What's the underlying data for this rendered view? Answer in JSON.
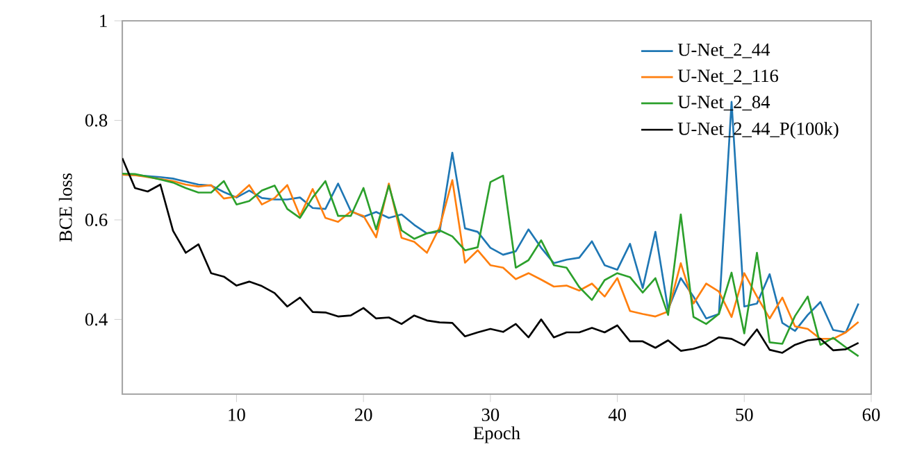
{
  "chart_data": {
    "type": "line",
    "xlabel": "Epoch",
    "ylabel": "BCE loss",
    "x": [
      1,
      2,
      3,
      4,
      5,
      6,
      7,
      8,
      9,
      10,
      11,
      12,
      13,
      14,
      15,
      16,
      17,
      18,
      19,
      20,
      21,
      22,
      23,
      24,
      25,
      26,
      27,
      28,
      29,
      30,
      31,
      32,
      33,
      34,
      35,
      36,
      37,
      38,
      39,
      40,
      41,
      42,
      43,
      44,
      45,
      46,
      47,
      48,
      49,
      50,
      51,
      52,
      53,
      54,
      55,
      56,
      57,
      58,
      59
    ],
    "xlim": [
      1,
      60
    ],
    "ylim": [
      0.25,
      1
    ],
    "xticks": [
      10,
      20,
      30,
      40,
      50,
      60
    ],
    "yticks": [
      0.4,
      0.6,
      0.8,
      1
    ],
    "legend": "top right",
    "grid": false,
    "marker": "none",
    "line_style": "solid",
    "series": [
      {
        "name": "U-Net_2_44",
        "color": "#1f77b4",
        "values": [
          0.691,
          0.69,
          0.688,
          0.686,
          0.683,
          0.677,
          0.671,
          0.669,
          0.656,
          0.645,
          0.659,
          0.644,
          0.641,
          0.641,
          0.645,
          0.624,
          0.622,
          0.673,
          0.618,
          0.606,
          0.616,
          0.604,
          0.611,
          0.59,
          0.573,
          0.576,
          0.735,
          0.583,
          0.576,
          0.544,
          0.53,
          0.537,
          0.581,
          0.544,
          0.513,
          0.52,
          0.524,
          0.557,
          0.509,
          0.5,
          0.552,
          0.463,
          0.576,
          0.42,
          0.483,
          0.446,
          0.402,
          0.411,
          0.837,
          0.426,
          0.432,
          0.491,
          0.393,
          0.377,
          0.409,
          0.435,
          0.379,
          0.374,
          0.432
        ]
      },
      {
        "name": "U-Net_2_116",
        "color": "#ff7f0e",
        "values": [
          0.691,
          0.69,
          0.686,
          0.682,
          0.678,
          0.671,
          0.667,
          0.67,
          0.643,
          0.647,
          0.67,
          0.631,
          0.644,
          0.67,
          0.608,
          0.662,
          0.604,
          0.596,
          0.617,
          0.608,
          0.565,
          0.673,
          0.564,
          0.556,
          0.534,
          0.585,
          0.68,
          0.514,
          0.539,
          0.509,
          0.504,
          0.481,
          0.493,
          0.48,
          0.466,
          0.468,
          0.458,
          0.472,
          0.446,
          0.483,
          0.417,
          0.411,
          0.406,
          0.416,
          0.513,
          0.432,
          0.472,
          0.456,
          0.405,
          0.493,
          0.446,
          0.402,
          0.444,
          0.386,
          0.381,
          0.361,
          0.361,
          0.374,
          0.395
        ]
      },
      {
        "name": "U-Net_2_84",
        "color": "#2ca02c",
        "values": [
          0.693,
          0.692,
          0.687,
          0.681,
          0.675,
          0.664,
          0.655,
          0.655,
          0.678,
          0.631,
          0.638,
          0.659,
          0.669,
          0.622,
          0.604,
          0.645,
          0.678,
          0.608,
          0.608,
          0.664,
          0.581,
          0.669,
          0.579,
          0.562,
          0.573,
          0.579,
          0.567,
          0.539,
          0.545,
          0.676,
          0.689,
          0.504,
          0.519,
          0.559,
          0.509,
          0.504,
          0.465,
          0.439,
          0.479,
          0.493,
          0.485,
          0.454,
          0.483,
          0.409,
          0.611,
          0.405,
          0.391,
          0.411,
          0.494,
          0.372,
          0.534,
          0.354,
          0.351,
          0.407,
          0.446,
          0.349,
          0.363,
          0.344,
          0.326
        ]
      },
      {
        "name": "U-Net_2_44_P(100k)",
        "color": "#000000",
        "values": [
          0.724,
          0.664,
          0.657,
          0.671,
          0.578,
          0.534,
          0.551,
          0.493,
          0.486,
          0.468,
          0.476,
          0.467,
          0.453,
          0.426,
          0.444,
          0.415,
          0.414,
          0.406,
          0.408,
          0.423,
          0.402,
          0.404,
          0.391,
          0.408,
          0.398,
          0.394,
          0.393,
          0.366,
          0.374,
          0.381,
          0.375,
          0.391,
          0.364,
          0.4,
          0.364,
          0.374,
          0.374,
          0.383,
          0.374,
          0.388,
          0.356,
          0.356,
          0.343,
          0.358,
          0.337,
          0.341,
          0.349,
          0.364,
          0.361,
          0.348,
          0.38,
          0.339,
          0.333,
          0.349,
          0.358,
          0.361,
          0.338,
          0.34,
          0.353
        ]
      }
    ]
  }
}
